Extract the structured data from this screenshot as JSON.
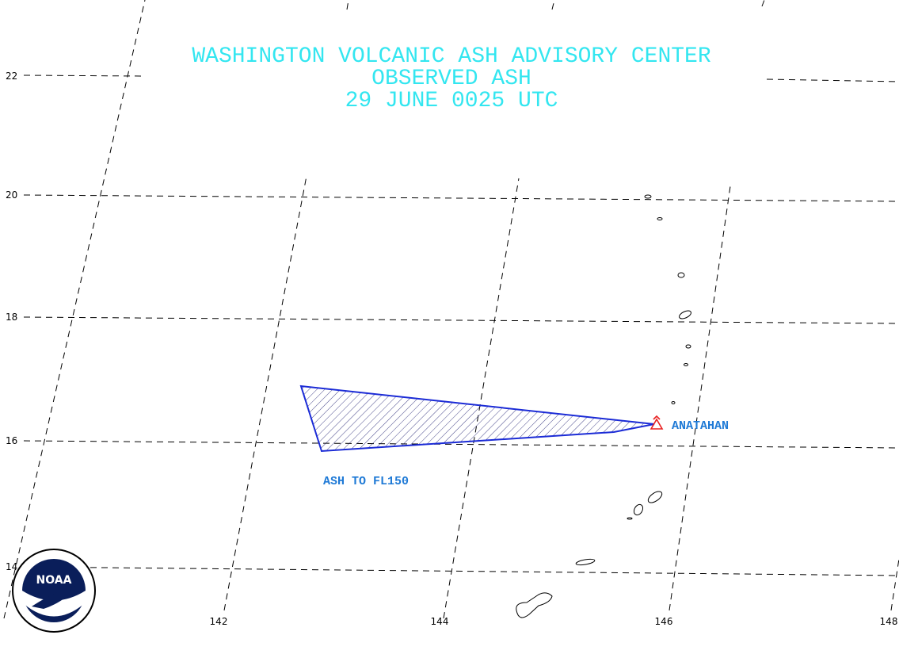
{
  "header": {
    "title": [
      "WASHINGTON VOLCANIC ASH ADVISORY CENTER",
      "OBSERVED ASH",
      "29 JUNE 0025 UTC"
    ]
  },
  "labels": {
    "volcano": "ANATAHAN",
    "ash": "ASH TO FL150"
  },
  "latitude_labels": [
    "22",
    "20",
    "18",
    "16",
    "14"
  ],
  "longitude_labels": [
    "142",
    "144",
    "146",
    "148"
  ],
  "logo": "NOAA"
}
